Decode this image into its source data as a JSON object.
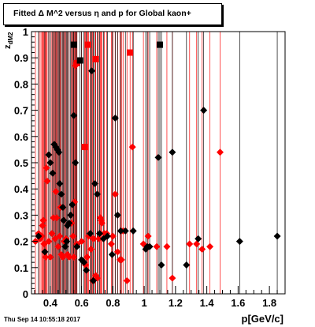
{
  "chart_data": {
    "type": "scatter",
    "title": "Fitted Δ M^2 versus η and p for Global kaon+",
    "xlabel": "p[GeV/c]",
    "ylabel": "z_{dM2}",
    "xlim": [
      0.28,
      1.9
    ],
    "ylim": [
      0,
      1
    ],
    "x_ticks": [
      "0.4",
      "0.6",
      "0.8",
      "1",
      "1.2",
      "1.4",
      "1.6",
      "1.8"
    ],
    "y_ticks": [
      "0",
      "0.1",
      "0.2",
      "0.3",
      "0.4",
      "0.5",
      "0.6",
      "0.7",
      "0.8",
      "0.9",
      "1"
    ],
    "grid": false,
    "footer": "Thu Sep 14 10:55:18 2017",
    "series": [
      {
        "color": "#ff0000",
        "marker": "diamond",
        "points": [
          [
            0.305,
            0.2
          ],
          [
            0.325,
            0.23
          ],
          [
            0.335,
            0.21
          ],
          [
            0.345,
            0.22
          ],
          [
            0.35,
            0.26
          ],
          [
            0.355,
            0.28
          ],
          [
            0.36,
            0.19
          ],
          [
            0.365,
            0.16
          ],
          [
            0.37,
            0.14
          ],
          [
            0.375,
            0.48
          ],
          [
            0.38,
            0.43
          ],
          [
            0.39,
            0.2
          ],
          [
            0.4,
            0.14
          ],
          [
            0.41,
            0.23
          ],
          [
            0.42,
            0.29
          ],
          [
            0.43,
            0.21
          ],
          [
            0.435,
            0.39
          ],
          [
            0.44,
            0.29
          ],
          [
            0.45,
            0.18
          ],
          [
            0.46,
            0.22
          ],
          [
            0.465,
            0.33
          ],
          [
            0.47,
            0.15
          ],
          [
            0.48,
            0.14
          ],
          [
            0.49,
            0.2
          ],
          [
            0.5,
            0.21
          ],
          [
            0.51,
            0.15
          ],
          [
            0.52,
            0.14
          ],
          [
            0.535,
            0.27
          ],
          [
            0.545,
            0.22
          ],
          [
            0.55,
            0.14
          ],
          [
            0.555,
            0.35
          ],
          [
            0.56,
            0.87
          ],
          [
            0.565,
            0.88
          ],
          [
            0.57,
            0.19
          ],
          [
            0.6,
            0.2
          ],
          [
            0.625,
            0.11
          ],
          [
            0.635,
            0.14
          ],
          [
            0.645,
            0.22
          ],
          [
            0.66,
            0.17
          ],
          [
            0.67,
            0.05
          ],
          [
            0.675,
            0.21
          ],
          [
            0.69,
            0.07
          ],
          [
            0.7,
            0.06
          ],
          [
            0.71,
            0.21
          ],
          [
            0.72,
            0.29
          ],
          [
            0.725,
            0.28
          ],
          [
            0.73,
            0.27
          ],
          [
            0.745,
            0.23
          ],
          [
            0.76,
            0.23
          ],
          [
            0.79,
            0.19
          ],
          [
            0.8,
            0.22
          ],
          [
            0.815,
            0.38
          ],
          [
            0.83,
            0.16
          ],
          [
            0.845,
            0.13
          ],
          [
            0.855,
            0.13
          ],
          [
            0.865,
            0.24
          ],
          [
            0.89,
            0.05
          ],
          [
            0.925,
            0.56
          ],
          [
            0.995,
            0.19
          ],
          [
            1.025,
            0.22
          ],
          [
            1.08,
            0.18
          ],
          [
            1.145,
            0.18
          ],
          [
            1.18,
            0.06
          ],
          [
            1.29,
            0.19
          ],
          [
            1.335,
            0.19
          ],
          [
            1.37,
            0.17
          ],
          [
            1.42,
            0.18
          ],
          [
            1.485,
            0.54
          ]
        ]
      },
      {
        "color": "#ff0000",
        "marker": "square",
        "points": [
          [
            0.57,
            0.88
          ],
          [
            0.62,
            0.56
          ],
          [
            0.64,
            0.95
          ],
          [
            0.69,
            0.895
          ],
          [
            0.91,
            0.92
          ]
        ]
      },
      {
        "color": "#000000",
        "marker": "diamond",
        "points": [
          [
            0.325,
            0.22
          ],
          [
            0.365,
            0.16
          ],
          [
            0.39,
            0.53
          ],
          [
            0.4,
            0.5
          ],
          [
            0.415,
            0.46
          ],
          [
            0.425,
            0.57
          ],
          [
            0.435,
            0.56
          ],
          [
            0.445,
            0.55
          ],
          [
            0.455,
            0.54
          ],
          [
            0.46,
            0.42
          ],
          [
            0.47,
            0.38
          ],
          [
            0.48,
            0.33
          ],
          [
            0.485,
            0.28
          ],
          [
            0.495,
            0.18
          ],
          [
            0.505,
            0.2
          ],
          [
            0.51,
            0.26
          ],
          [
            0.52,
            0.27
          ],
          [
            0.53,
            0.3
          ],
          [
            0.54,
            0.34
          ],
          [
            0.55,
            0.68
          ],
          [
            0.56,
            0.5
          ],
          [
            0.57,
            0.18
          ],
          [
            0.6,
            0.13
          ],
          [
            0.615,
            0.12
          ],
          [
            0.63,
            0.09
          ],
          [
            0.655,
            0.23
          ],
          [
            0.665,
            0.85
          ],
          [
            0.675,
            0.05
          ],
          [
            0.685,
            0.42
          ],
          [
            0.7,
            0.38
          ],
          [
            0.715,
            0.23
          ],
          [
            0.74,
            0.21
          ],
          [
            0.765,
            0.22
          ],
          [
            0.795,
            0.15
          ],
          [
            0.815,
            0.67
          ],
          [
            0.83,
            0.3
          ],
          [
            0.85,
            0.24
          ],
          [
            0.88,
            0.24
          ],
          [
            0.93,
            0.24
          ],
          [
            1.01,
            0.17
          ],
          [
            1.02,
            0.18
          ],
          [
            1.035,
            0.18
          ],
          [
            1.09,
            0.52
          ],
          [
            1.11,
            0.11
          ],
          [
            1.18,
            0.54
          ],
          [
            1.27,
            0.11
          ],
          [
            1.345,
            0.21
          ],
          [
            1.38,
            0.7
          ],
          [
            1.61,
            0.2
          ],
          [
            1.85,
            0.22
          ]
        ]
      },
      {
        "color": "#000000",
        "marker": "square",
        "points": [
          [
            0.55,
            0.95
          ],
          [
            0.59,
            0.89
          ],
          [
            1.1,
            0.95
          ]
        ]
      }
    ]
  }
}
